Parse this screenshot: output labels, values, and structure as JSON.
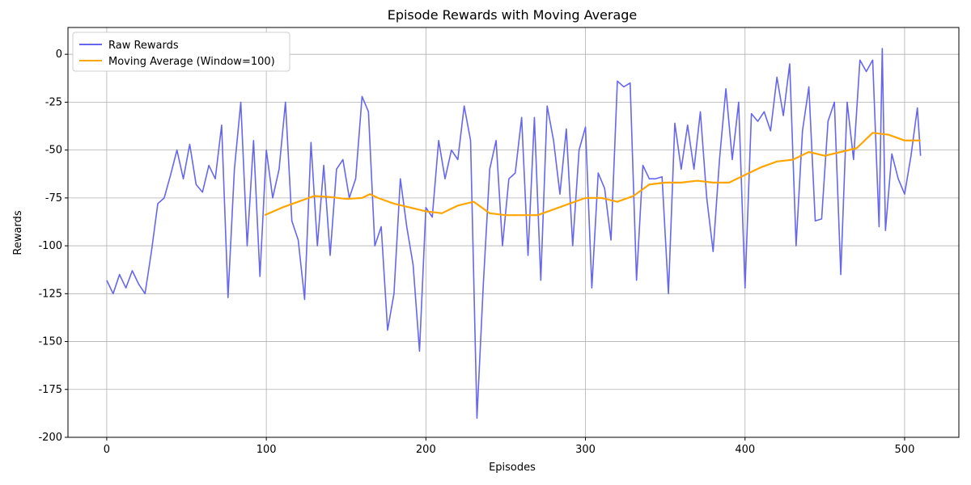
{
  "chart_data": {
    "type": "line",
    "title": "Episode Rewards with Moving Average",
    "x_label": "Episodes",
    "y_label": "Rewards",
    "xlim": [
      -24.3,
      534
    ],
    "ylim": [
      -200,
      14
    ],
    "xticks": [
      0,
      100,
      200,
      300,
      400,
      500
    ],
    "yticks": [
      -200,
      -175,
      -150,
      -125,
      -100,
      -75,
      -50,
      -25,
      0
    ],
    "grid": true,
    "legend": "upper left",
    "series": [
      {
        "name": "Raw Rewards",
        "color": "#6666ee",
        "x": [
          0,
          4,
          8,
          12,
          16,
          20,
          24,
          28,
          32,
          36,
          40,
          44,
          48,
          52,
          56,
          60,
          64,
          68,
          72,
          76,
          80,
          84,
          88,
          92,
          96,
          100,
          104,
          108,
          112,
          116,
          120,
          124,
          128,
          132,
          136,
          140,
          144,
          148,
          152,
          156,
          160,
          164,
          168,
          172,
          176,
          180,
          184,
          188,
          192,
          196,
          200,
          204,
          208,
          212,
          216,
          220,
          224,
          228,
          232,
          236,
          240,
          244,
          248,
          252,
          256,
          260,
          264,
          268,
          272,
          276,
          280,
          284,
          288,
          292,
          296,
          300,
          304,
          308,
          312,
          316,
          320,
          324,
          328,
          332,
          336,
          340,
          344,
          348,
          352,
          356,
          360,
          364,
          368,
          372,
          376,
          380,
          384,
          388,
          392,
          396,
          400,
          404,
          408,
          412,
          416,
          420,
          424,
          428,
          432,
          436,
          440,
          444,
          448,
          452,
          456,
          460,
          464,
          468,
          472,
          476,
          480,
          484,
          486,
          488,
          492,
          496,
          500,
          504,
          508,
          510
        ],
        "values": [
          -118,
          -125,
          -115,
          -122,
          -113,
          -120,
          -125,
          -103,
          -78,
          -75,
          -63,
          -50,
          -65,
          -47,
          -68,
          -72,
          -58,
          -65,
          -37,
          -127,
          -60,
          -25,
          -100,
          -45,
          -116,
          -50,
          -75,
          -60,
          -25,
          -87,
          -97,
          -128,
          -46,
          -100,
          -58,
          -105,
          -60,
          -55,
          -75,
          -65,
          -22,
          -30,
          -100,
          -90,
          -144,
          -125,
          -65,
          -90,
          -110,
          -155,
          -80,
          -85,
          -45,
          -65,
          -50,
          -55,
          -27,
          -45,
          -190,
          -120,
          -60,
          -45,
          -100,
          -65,
          -62,
          -33,
          -105,
          -33,
          -118,
          -27,
          -45,
          -73,
          -39,
          -100,
          -50,
          -38,
          -122,
          -62,
          -70,
          -97,
          -14,
          -17,
          -15,
          -118,
          -58,
          -65,
          -65,
          -64,
          -125,
          -36,
          -60,
          -37,
          -60,
          -30,
          -75,
          -103,
          -55,
          -18,
          -55,
          -25,
          -122,
          -31,
          -35,
          -30,
          -40,
          -12,
          -32,
          -5,
          -100,
          -40,
          -17,
          -87,
          -86,
          -35,
          -25,
          -115,
          -25,
          -55,
          -3,
          -9,
          -3,
          -90,
          3,
          -92,
          -52,
          -65,
          -73,
          -53,
          -28,
          -53
        ]
      },
      {
        "name": "Moving Average (Window=100)",
        "color": "#ffa500",
        "x": [
          99,
          110,
          120,
          130,
          140,
          150,
          160,
          165,
          170,
          180,
          190,
          200,
          210,
          220,
          230,
          240,
          250,
          260,
          270,
          280,
          290,
          300,
          310,
          320,
          330,
          340,
          350,
          360,
          370,
          380,
          390,
          400,
          410,
          420,
          430,
          440,
          450,
          460,
          470,
          480,
          490,
          500,
          510
        ],
        "values": [
          -84,
          -80,
          -77,
          -74,
          -74.5,
          -75.5,
          -75,
          -73,
          -75,
          -78,
          -80,
          -82,
          -83,
          -79,
          -77,
          -83,
          -84,
          -84,
          -84,
          -81,
          -78,
          -75,
          -75,
          -77,
          -74,
          -68,
          -67,
          -67,
          -66,
          -67,
          -67,
          -63,
          -59,
          -56,
          -55,
          -51,
          -53,
          -51,
          -49,
          -41,
          -42,
          -45,
          -45
        ]
      }
    ]
  }
}
